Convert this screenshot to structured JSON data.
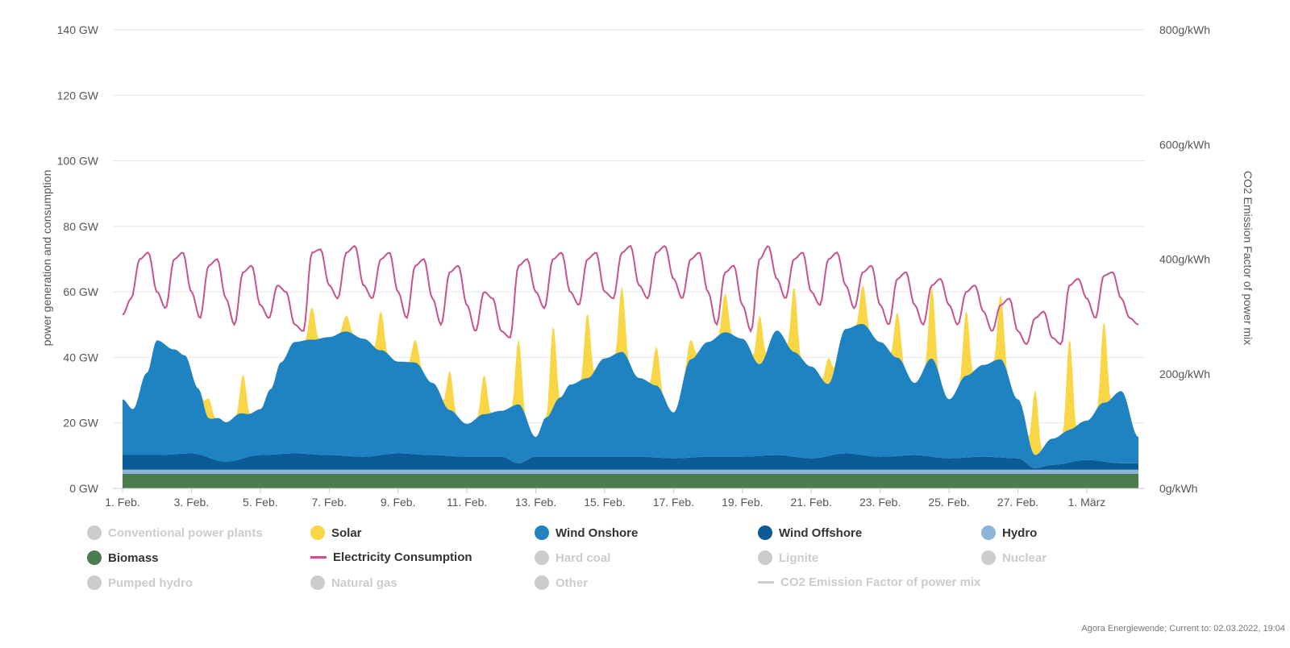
{
  "chart_data": {
    "type": "area",
    "title": "",
    "ylabel_left": "power generation and consumption",
    "ylabel_right": "CO2 Emission Factor of power mix",
    "y_left_ticks": [
      "0 GW",
      "20 GW",
      "40 GW",
      "60 GW",
      "80 GW",
      "100 GW",
      "120 GW",
      "140 GW"
    ],
    "y_left_range": [
      0,
      140
    ],
    "y_right_ticks": [
      "0g/kWh",
      "200g/kWh",
      "400g/kWh",
      "600g/kWh",
      "800g/kWh"
    ],
    "y_right_range": [
      0,
      800
    ],
    "x_ticks": [
      "1. Feb.",
      "3. Feb.",
      "5. Feb.",
      "7. Feb.",
      "9. Feb.",
      "11. Feb.",
      "13. Feb.",
      "15. Feb.",
      "17. Feb.",
      "19. Feb.",
      "21. Feb.",
      "23. Feb.",
      "25. Feb.",
      "27. Feb.",
      "1. März"
    ],
    "x_range_days": [
      0,
      29.5
    ],
    "grid": true,
    "series": [
      {
        "name": "Biomass",
        "unit": "GW",
        "stack": true,
        "x": [
          0,
          29.5
        ],
        "values": [
          4.5,
          4.5
        ]
      },
      {
        "name": "Hydro",
        "unit": "GW",
        "stack": true,
        "x": [
          0,
          29.5
        ],
        "values": [
          1.2,
          1.2
        ]
      },
      {
        "name": "Wind Offshore",
        "unit": "GW",
        "stack": true,
        "x": [
          0,
          1,
          2,
          3,
          4,
          5,
          6,
          7,
          8,
          9,
          10,
          11,
          11.5,
          12,
          13,
          14,
          15,
          16,
          17,
          18,
          19,
          20,
          21,
          22,
          23,
          24,
          25,
          26,
          26.5,
          27,
          28,
          29,
          29.5
        ],
        "values": [
          4.5,
          4.5,
          5,
          2.5,
          4.5,
          5,
          4.5,
          4,
          5,
          4.5,
          4,
          4,
          2,
          4,
          4,
          4,
          4,
          3.5,
          4,
          4,
          4.5,
          3.5,
          5,
          4,
          4.5,
          3.5,
          4,
          3.5,
          0.5,
          1.5,
          3,
          2,
          2
        ]
      },
      {
        "name": "Wind Onshore",
        "unit": "GW",
        "stack": true,
        "x": [
          0,
          0.3,
          0.7,
          1.0,
          1.5,
          1.8,
          2.2,
          2.5,
          2.8,
          3.0,
          3.4,
          3.7,
          4.0,
          4.3,
          4.6,
          5.0,
          5.5,
          6.0,
          6.5,
          7.0,
          7.5,
          8.0,
          8.5,
          9.0,
          9.5,
          10.0,
          10.5,
          11.0,
          11.5,
          12.0,
          12.3,
          12.7,
          13.0,
          13.5,
          14.0,
          14.5,
          15.0,
          15.5,
          16.0,
          16.5,
          17.0,
          17.5,
          18.0,
          18.5,
          19.0,
          19.5,
          20.0,
          20.5,
          21.0,
          21.5,
          22.0,
          22.5,
          23.0,
          23.5,
          24.0,
          24.5,
          25.0,
          25.5,
          26.0,
          26.5,
          27.0,
          27.5,
          28.0,
          28.5,
          29.0,
          29.5
        ],
        "values": [
          17,
          14,
          25,
          35,
          32,
          30,
          20,
          12,
          13,
          12,
          14,
          13,
          14,
          20,
          28,
          34,
          35,
          36,
          38,
          36,
          32,
          28,
          28,
          22,
          14,
          10,
          13,
          14,
          18,
          6,
          12,
          18,
          22,
          24,
          30,
          32,
          24,
          22,
          14,
          30,
          35,
          38,
          36,
          28,
          38,
          32,
          28,
          22,
          38,
          40,
          35,
          30,
          22,
          30,
          18,
          25,
          28,
          30,
          18,
          4,
          8,
          10,
          12,
          18,
          22,
          8
        ]
      },
      {
        "name": "Solar",
        "unit": "GW",
        "stack": true,
        "x": [
          0,
          2.3,
          2.5,
          2.7,
          3.3,
          3.5,
          3.7,
          5.3,
          5.5,
          5.7,
          6.3,
          6.5,
          6.7,
          7.3,
          7.5,
          7.7,
          8.3,
          8.5,
          8.7,
          9.3,
          9.5,
          9.7,
          10.3,
          10.5,
          10.7,
          11.3,
          11.5,
          11.7,
          12.3,
          12.5,
          12.7,
          13.3,
          13.5,
          13.7,
          14.3,
          14.5,
          14.7,
          15.3,
          15.5,
          15.7,
          16.3,
          16.5,
          16.7,
          17.3,
          17.5,
          17.7,
          18.3,
          18.5,
          18.7,
          19.3,
          19.5,
          19.7,
          20.3,
          20.5,
          20.7,
          21.3,
          21.5,
          21.7,
          22.3,
          22.5,
          22.7,
          23.3,
          23.5,
          23.7,
          24.3,
          24.5,
          24.7,
          25.3,
          25.5,
          25.7,
          26.3,
          26.5,
          26.7,
          27.3,
          27.5,
          27.7,
          28.3,
          28.5,
          28.7,
          29.5
        ],
        "values": [
          0,
          0,
          6,
          0,
          0,
          12,
          0,
          0,
          10,
          0,
          0,
          5,
          0,
          0,
          12,
          0,
          0,
          7,
          0,
          0,
          12,
          0,
          0,
          12,
          0,
          0,
          20,
          0,
          0,
          25,
          0,
          0,
          20,
          0,
          0,
          20,
          0,
          0,
          12,
          0,
          0,
          6,
          0,
          0,
          12,
          0,
          0,
          15,
          0,
          0,
          20,
          0,
          0,
          8,
          0,
          0,
          12,
          0,
          0,
          14,
          0,
          0,
          22,
          0,
          0,
          20,
          0,
          0,
          20,
          0,
          0,
          20,
          0,
          0,
          28,
          0,
          0,
          25,
          0,
          0
        ]
      },
      {
        "name": "Electricity Consumption",
        "unit": "GW",
        "stack": false,
        "x": [
          0,
          0.25,
          0.5,
          0.75,
          1.0,
          1.25,
          1.5,
          1.75,
          2.0,
          2.25,
          2.5,
          2.75,
          3.0,
          3.25,
          3.5,
          3.75,
          4.0,
          4.25,
          4.5,
          4.75,
          5.0,
          5.25,
          5.5,
          5.75,
          6.0,
          6.25,
          6.5,
          6.75,
          7.0,
          7.25,
          7.5,
          7.75,
          8.0,
          8.25,
          8.5,
          8.75,
          9.0,
          9.25,
          9.5,
          9.75,
          10.0,
          10.25,
          10.5,
          10.75,
          11.0,
          11.25,
          11.5,
          11.75,
          12.0,
          12.25,
          12.5,
          12.75,
          13.0,
          13.25,
          13.5,
          13.75,
          14.0,
          14.25,
          14.5,
          14.75,
          15.0,
          15.25,
          15.5,
          15.75,
          16.0,
          16.25,
          16.5,
          16.75,
          17.0,
          17.25,
          17.5,
          17.75,
          18.0,
          18.25,
          18.5,
          18.75,
          19.0,
          19.25,
          19.5,
          19.75,
          20.0,
          20.25,
          20.5,
          20.75,
          21.0,
          21.25,
          21.5,
          21.75,
          22.0,
          22.25,
          22.5,
          22.75,
          23.0,
          23.25,
          23.5,
          23.75,
          24.0,
          24.25,
          24.5,
          24.75,
          25.0,
          25.25,
          25.5,
          25.75,
          26.0,
          26.25,
          26.5,
          26.75,
          27.0,
          27.25,
          27.5,
          27.75,
          28.0,
          28.25,
          28.5,
          28.75,
          29.0,
          29.25,
          29.5
        ],
        "values": [
          53,
          58,
          70,
          72,
          60,
          55,
          70,
          72,
          60,
          52,
          68,
          70,
          58,
          50,
          66,
          68,
          56,
          52,
          62,
          60,
          50,
          48,
          72,
          73,
          62,
          58,
          72,
          74,
          62,
          58,
          70,
          72,
          60,
          52,
          68,
          70,
          58,
          50,
          66,
          68,
          56,
          48,
          60,
          58,
          48,
          46,
          68,
          70,
          60,
          55,
          70,
          72,
          60,
          56,
          70,
          72,
          60,
          58,
          72,
          74,
          62,
          58,
          72,
          74,
          64,
          58,
          70,
          72,
          60,
          50,
          66,
          68,
          56,
          48,
          70,
          74,
          64,
          58,
          70,
          72,
          60,
          56,
          70,
          72,
          62,
          55,
          66,
          68,
          56,
          50,
          64,
          66,
          56,
          50,
          62,
          64,
          56,
          50,
          60,
          62,
          54,
          48,
          56,
          58,
          48,
          44,
          52,
          54,
          46,
          44,
          62,
          64,
          58,
          52,
          65,
          66,
          58,
          52,
          50
        ]
      }
    ],
    "colors": {
      "Biomass": "#4a7c4e",
      "Hydro": "#8ab4d8",
      "Wind Offshore": "#0b5c96",
      "Wind Onshore": "#1f82c1",
      "Solar": "#f9d645",
      "Electricity Consumption": "#c5538d",
      "inactive": "#cccccc",
      "grid": "#e6e6e6",
      "axis_text": "#555555"
    }
  },
  "legend": {
    "items": [
      {
        "label": "Conventional power plants",
        "active": false,
        "marker": "dot",
        "color": "#cccccc"
      },
      {
        "label": "Solar",
        "active": true,
        "marker": "dot",
        "color": "#f9d645"
      },
      {
        "label": "Wind Onshore",
        "active": true,
        "marker": "dot",
        "color": "#1f82c1"
      },
      {
        "label": "Wind Offshore",
        "active": true,
        "marker": "dot",
        "color": "#0b5c96"
      },
      {
        "label": "Hydro",
        "active": true,
        "marker": "dot",
        "color": "#8ab4d8"
      },
      {
        "label": "Biomass",
        "active": true,
        "marker": "dot",
        "color": "#4a7c4e"
      },
      {
        "label": "Electricity Consumption",
        "active": true,
        "marker": "line",
        "color": "#c5538d"
      },
      {
        "label": "Hard coal",
        "active": false,
        "marker": "dot",
        "color": "#cccccc"
      },
      {
        "label": "Lignite",
        "active": false,
        "marker": "dot",
        "color": "#cccccc"
      },
      {
        "label": "Nuclear",
        "active": false,
        "marker": "dot",
        "color": "#cccccc"
      },
      {
        "label": "Pumped hydro",
        "active": false,
        "marker": "dot",
        "color": "#cccccc"
      },
      {
        "label": "Natural gas",
        "active": false,
        "marker": "dot",
        "color": "#cccccc"
      },
      {
        "label": "Other",
        "active": false,
        "marker": "dot",
        "color": "#cccccc"
      },
      {
        "label": "CO2 Emission Factor of power mix",
        "active": false,
        "marker": "line",
        "color": "#cccccc"
      }
    ]
  },
  "credit": "Agora Energiewende; Current to: 02.03.2022, 19:04"
}
